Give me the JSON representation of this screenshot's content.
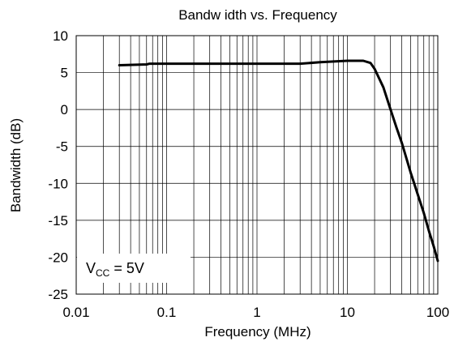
{
  "chart_data": {
    "type": "line",
    "title": "Bandw idth vs. Frequency",
    "xlabel": "Frequency (MHz)",
    "ylabel": "Bandwidth (dB)",
    "x_scale": "log",
    "xlim": [
      0.01,
      100
    ],
    "ylim": [
      -25,
      10
    ],
    "x_ticks": [
      0.01,
      0.1,
      1,
      10,
      100
    ],
    "x_tick_labels": [
      "0.01",
      "0.1",
      "1",
      "10",
      "100"
    ],
    "y_ticks": [
      10,
      5,
      0,
      -5,
      -10,
      -15,
      -20,
      -25
    ],
    "y_tick_labels": [
      "10",
      "5",
      "0",
      "-5",
      "-10",
      "-15",
      "-20",
      "-25"
    ],
    "grid": true,
    "series": [
      {
        "color": "#000000",
        "x": [
          0.03,
          0.06,
          0.065,
          0.2,
          1,
          3,
          5,
          10,
          15,
          18,
          20,
          25,
          30,
          35,
          40,
          50,
          60,
          70,
          80,
          90,
          100
        ],
        "y": [
          6.0,
          6.1,
          6.2,
          6.2,
          6.2,
          6.2,
          6.4,
          6.6,
          6.6,
          6.3,
          5.5,
          3.0,
          0.0,
          -2.5,
          -4.5,
          -8.5,
          -11.5,
          -14.0,
          -16.5,
          -18.5,
          -20.5
        ]
      }
    ],
    "annotation": {
      "main": "V",
      "subscript": "CC",
      "suffix": " = 5V"
    }
  }
}
